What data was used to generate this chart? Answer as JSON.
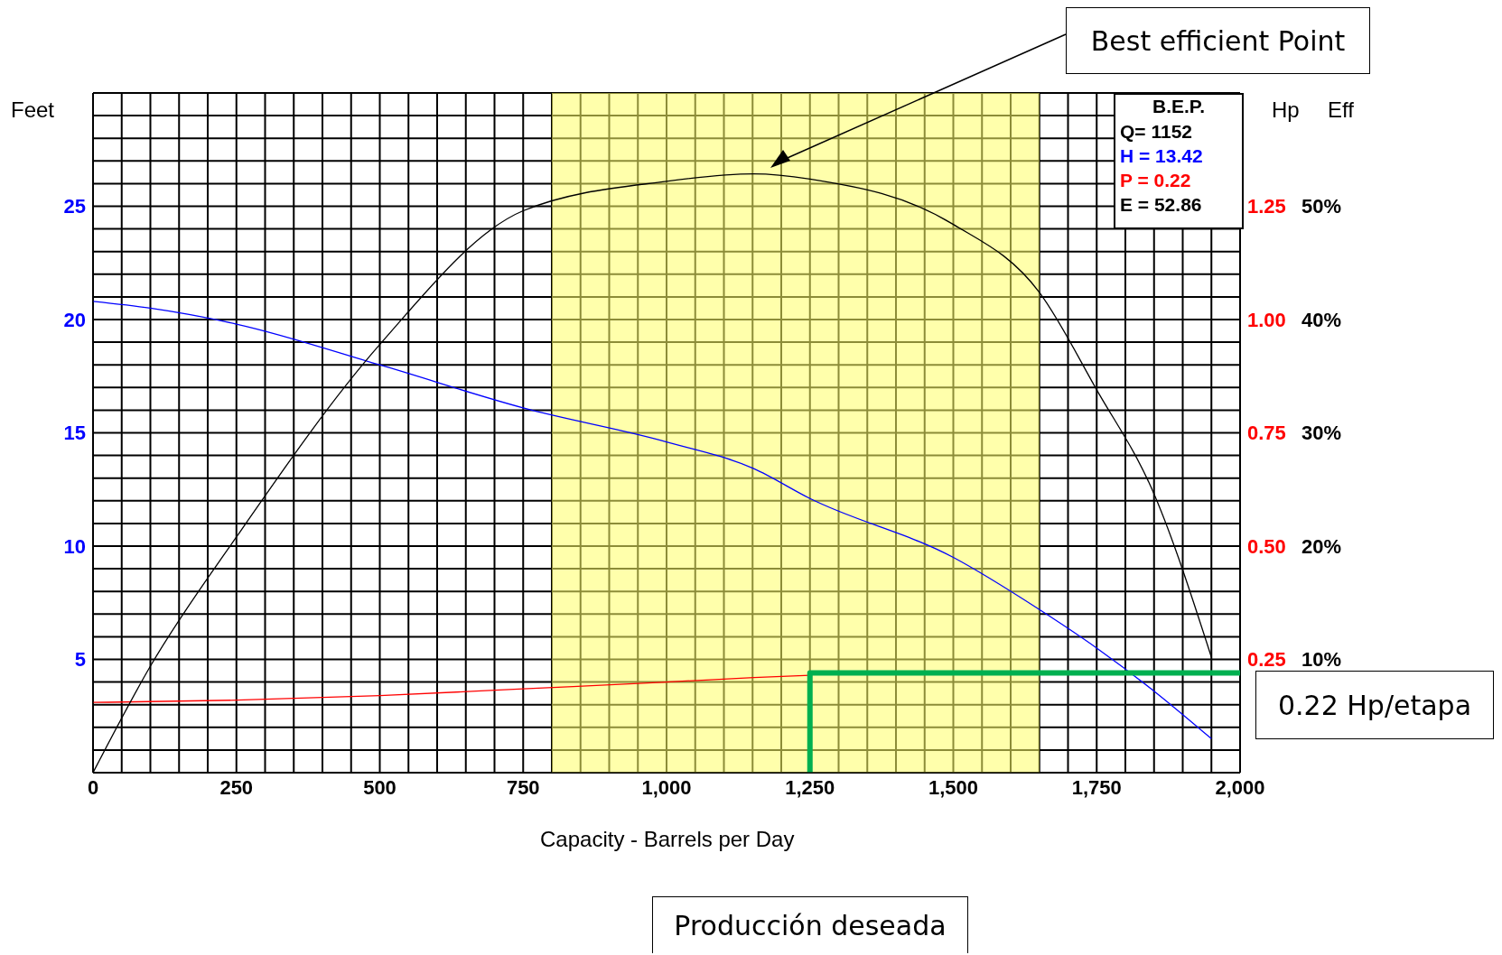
{
  "chart_data": {
    "type": "line",
    "xlabel": "Capacity - Barrels per Day",
    "ylabel": "Feet",
    "y2label": "Hp",
    "y3label": "Eff",
    "xlim": [
      0,
      2000
    ],
    "xticks": [
      {
        "value": 0,
        "label": "0"
      },
      {
        "value": 50,
        "label": null
      },
      {
        "value": 100,
        "label": null
      },
      {
        "value": 150,
        "label": null
      },
      {
        "value": 200,
        "label": null
      },
      {
        "value": 250,
        "label": "250"
      },
      {
        "value": 300,
        "label": null
      },
      {
        "value": 350,
        "label": null
      },
      {
        "value": 400,
        "label": null
      },
      {
        "value": 450,
        "label": null
      },
      {
        "value": 500,
        "label": "500"
      },
      {
        "value": 550,
        "label": null
      },
      {
        "value": 600,
        "label": null
      },
      {
        "value": 650,
        "label": null
      },
      {
        "value": 700,
        "label": null
      },
      {
        "value": 750,
        "label": "750"
      },
      {
        "value": 800,
        "label": null
      },
      {
        "value": 850,
        "label": null
      },
      {
        "value": 900,
        "label": null
      },
      {
        "value": 950,
        "label": null
      },
      {
        "value": 1000,
        "label": "1,000"
      },
      {
        "value": 1050,
        "label": null
      },
      {
        "value": 1100,
        "label": null
      },
      {
        "value": 1150,
        "label": null
      },
      {
        "value": 1200,
        "label": null
      },
      {
        "value": 1250,
        "label": "1,250"
      },
      {
        "value": 1300,
        "label": null
      },
      {
        "value": 1350,
        "label": null
      },
      {
        "value": 1400,
        "label": null
      },
      {
        "value": 1450,
        "label": null
      },
      {
        "value": 1500,
        "label": "1,500"
      },
      {
        "value": 1550,
        "label": null
      },
      {
        "value": 1600,
        "label": null
      },
      {
        "value": 1650,
        "label": null
      },
      {
        "value": 1700,
        "label": null
      },
      {
        "value": 1750,
        "label": "1,750"
      },
      {
        "value": 1800,
        "label": null
      },
      {
        "value": 1850,
        "label": null
      },
      {
        "value": 1900,
        "label": null
      },
      {
        "value": 1950,
        "label": null
      },
      {
        "value": 2000,
        "label": "2,000"
      }
    ],
    "ylim": [
      0,
      30
    ],
    "yticks": [
      {
        "value": 0,
        "label": null
      },
      {
        "value": 1,
        "label": null
      },
      {
        "value": 2,
        "label": null
      },
      {
        "value": 3,
        "label": null
      },
      {
        "value": 4,
        "label": null
      },
      {
        "value": 5,
        "label": "5"
      },
      {
        "value": 6,
        "label": null
      },
      {
        "value": 7,
        "label": null
      },
      {
        "value": 8,
        "label": null
      },
      {
        "value": 9,
        "label": null
      },
      {
        "value": 10,
        "label": "10"
      },
      {
        "value": 11,
        "label": null
      },
      {
        "value": 12,
        "label": null
      },
      {
        "value": 13,
        "label": null
      },
      {
        "value": 14,
        "label": null
      },
      {
        "value": 15,
        "label": "15"
      },
      {
        "value": 16,
        "label": null
      },
      {
        "value": 17,
        "label": null
      },
      {
        "value": 18,
        "label": null
      },
      {
        "value": 19,
        "label": null
      },
      {
        "value": 20,
        "label": "20"
      },
      {
        "value": 21,
        "label": null
      },
      {
        "value": 22,
        "label": null
      },
      {
        "value": 23,
        "label": null
      },
      {
        "value": 24,
        "label": null
      },
      {
        "value": 25,
        "label": "25"
      },
      {
        "value": 26,
        "label": null
      },
      {
        "value": 27,
        "label": null
      },
      {
        "value": 28,
        "label": null
      },
      {
        "value": 29,
        "label": null
      },
      {
        "value": 30,
        "label": null
      }
    ],
    "y2lim": [
      0,
      1.5
    ],
    "y2ticks": [
      {
        "value": 0.25,
        "label": "0.25"
      },
      {
        "value": 0.5,
        "label": "0.50"
      },
      {
        "value": 0.75,
        "label": "0.75"
      },
      {
        "value": 1,
        "label": "1.00"
      },
      {
        "value": 1.25,
        "label": "1.25"
      }
    ],
    "y3lim": [
      0,
      60
    ],
    "y3ticks": [
      {
        "value": 10,
        "label": "10%"
      },
      {
        "value": 20,
        "label": "20%"
      },
      {
        "value": 30,
        "label": "30%"
      },
      {
        "value": 40,
        "label": "40%"
      },
      {
        "value": 50,
        "label": "50%"
      }
    ],
    "grid": true,
    "marker": "none",
    "line_style": "solid",
    "series": [
      {
        "color": "#0000ff",
        "x": [
          0,
          100,
          250,
          500,
          750,
          1000,
          1152,
          1250,
          1500,
          1650,
          1750,
          1850,
          1950
        ],
        "values": [
          20.8,
          20.5,
          19.8,
          18,
          16.1,
          14.6,
          13.42,
          12.1,
          9.5,
          7.2,
          5.5,
          3.6,
          1.5
        ]
      },
      {
        "color": "#ff0000",
        "axis": "y2",
        "x": [
          0,
          250,
          500,
          750,
          1000,
          1152,
          1250
        ],
        "values": [
          0.155,
          0.16,
          0.17,
          0.185,
          0.2,
          0.21,
          0.215
        ]
      },
      {
        "color": "#000000",
        "axis": "y3",
        "x": [
          0,
          100,
          250,
          500,
          750,
          1000,
          1152,
          1250,
          1500,
          1650,
          1750,
          1850,
          1950
        ],
        "values": [
          0,
          9.4,
          20.8,
          37.8,
          49.6,
          52.2,
          52.86,
          52.4,
          48.4,
          42.4,
          33.8,
          24.6,
          10.2
        ]
      },
      {
        "color": "#00b050",
        "axis": "y2",
        "x": [
          1250,
          1250,
          2000
        ],
        "values": [
          0,
          0.22,
          0.22
        ]
      }
    ],
    "bands": [
      {
        "axis": "x",
        "from": 800,
        "to": 1650,
        "color": "#ffff66"
      }
    ],
    "annotations": [
      "Best efficient Point",
      "B.E.P.",
      "Q= 1152",
      "H = 13.42",
      "P = 0.22",
      "E = 52.86",
      "0.22 Hp/etapa",
      "Producción deseada"
    ]
  }
}
